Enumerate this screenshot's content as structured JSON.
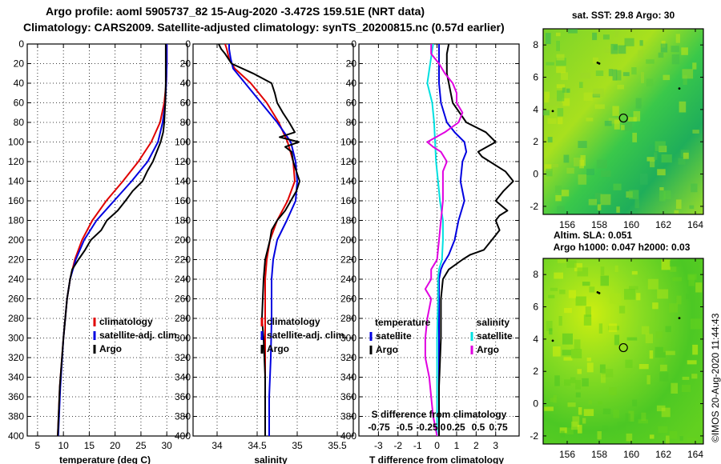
{
  "header": {
    "line1": "Argo profile: aoml 5905737_82 15-Aug-2020 -3.472S 159.51E (NRT data)",
    "line2": "Climatology: CARS2009. Satellite-adjusted climatology: synTS_20200815.nc (0.57d earlier)"
  },
  "colors": {
    "climatology": "#e00000",
    "satellite": "#0000e0",
    "argo": "#000000",
    "sat_salinity": "#00e0e0",
    "sat_diff_salinity": "#e000e0"
  },
  "chart_data": [
    {
      "type": "line",
      "title": "",
      "xlabel": "temperature (deg C)",
      "ylabel": "",
      "xlim": [
        3,
        34
      ],
      "ylim": [
        400,
        0
      ],
      "xticks": [
        5,
        10,
        15,
        20,
        25,
        30
      ],
      "yticks": [
        0,
        20,
        40,
        60,
        80,
        100,
        120,
        140,
        160,
        180,
        200,
        220,
        240,
        260,
        280,
        300,
        320,
        340,
        360,
        380,
        400
      ],
      "legend": [
        "climatology",
        "satellite-adj. clim.",
        "Argo"
      ],
      "series": [
        {
          "name": "climatology",
          "color": "#e00000",
          "depth": [
            0,
            20,
            40,
            60,
            80,
            100,
            120,
            140,
            160,
            180,
            200,
            220,
            240,
            260,
            300,
            350,
            400
          ],
          "values": [
            30.0,
            30.0,
            29.9,
            29.5,
            28.7,
            27.0,
            24.5,
            21.5,
            18.3,
            15.6,
            13.6,
            12.2,
            11.3,
            10.7,
            10.0,
            9.3,
            8.9
          ]
        },
        {
          "name": "satellite-adj. clim.",
          "color": "#0000e0",
          "depth": [
            0,
            20,
            40,
            60,
            80,
            100,
            120,
            140,
            160,
            180,
            200,
            220,
            240,
            260,
            300,
            350,
            400
          ],
          "values": [
            30.0,
            30.0,
            29.9,
            29.7,
            29.2,
            28.3,
            26.3,
            23.2,
            19.8,
            16.4,
            14.0,
            12.4,
            11.3,
            10.7,
            10.0,
            9.4,
            9.0
          ]
        },
        {
          "name": "Argo",
          "color": "#000000",
          "depth": [
            0,
            20,
            40,
            60,
            80,
            90,
            100,
            120,
            130,
            140,
            150,
            160,
            170,
            180,
            190,
            200,
            210,
            220,
            230,
            240,
            260,
            300,
            350,
            400
          ],
          "values": [
            29.8,
            29.8,
            29.8,
            29.7,
            29.5,
            29.3,
            28.8,
            27.3,
            26.2,
            25.3,
            23.4,
            22.0,
            20.5,
            18.4,
            17.3,
            15.3,
            14.2,
            12.9,
            11.7,
            11.3,
            10.7,
            10.0,
            9.3,
            8.9
          ]
        }
      ]
    },
    {
      "type": "line",
      "title": "",
      "xlabel": "salinity",
      "ylabel": "",
      "xlim": [
        33.7,
        35.7
      ],
      "ylim": [
        400,
        0
      ],
      "xticks": [
        34,
        34.5,
        35,
        35.5
      ],
      "yticks": [
        0,
        20,
        40,
        60,
        80,
        100,
        120,
        140,
        160,
        180,
        200,
        220,
        240,
        260,
        280,
        300,
        320,
        340,
        360,
        380,
        400
      ],
      "legend": [
        "climatology",
        "satellite-adj. clim.",
        "Argo"
      ],
      "series": [
        {
          "name": "climatology",
          "color": "#e00000",
          "depth": [
            0,
            5,
            15,
            25,
            40,
            60,
            80,
            100,
            120,
            140,
            160,
            180,
            200,
            220,
            240,
            280,
            320,
            360,
            400
          ],
          "values": [
            34.1,
            34.12,
            34.15,
            34.22,
            34.42,
            34.62,
            34.77,
            34.88,
            34.95,
            34.97,
            34.88,
            34.75,
            34.66,
            34.62,
            34.6,
            34.6,
            34.6,
            34.6,
            34.6
          ]
        },
        {
          "name": "satellite-adj. clim.",
          "color": "#0000e0",
          "depth": [
            0,
            5,
            15,
            25,
            40,
            60,
            80,
            100,
            120,
            140,
            160,
            180,
            200,
            220,
            240,
            280,
            320,
            360,
            400
          ],
          "values": [
            34.15,
            34.15,
            34.17,
            34.2,
            34.35,
            34.55,
            34.75,
            34.92,
            34.98,
            35.0,
            34.98,
            34.87,
            34.75,
            34.7,
            34.68,
            34.68,
            34.67,
            34.65,
            34.65
          ]
        },
        {
          "name": "Argo",
          "color": "#000000",
          "depth": [
            0,
            5,
            10,
            20,
            30,
            40,
            50,
            60,
            70,
            80,
            90,
            95,
            100,
            105,
            110,
            120,
            130,
            140,
            150,
            160,
            170,
            180,
            190,
            200,
            210,
            220,
            240,
            260,
            280,
            300,
            320,
            340,
            360,
            380,
            400
          ],
          "values": [
            34.02,
            34.05,
            34.1,
            34.18,
            34.45,
            34.68,
            34.72,
            34.75,
            34.82,
            34.9,
            34.97,
            34.78,
            35.02,
            34.85,
            34.93,
            34.95,
            34.99,
            35.03,
            34.99,
            34.92,
            34.85,
            34.75,
            34.68,
            34.66,
            34.63,
            34.6,
            34.58,
            34.57,
            34.56,
            34.58,
            34.59,
            34.6,
            34.6,
            34.6,
            34.6
          ]
        }
      ]
    },
    {
      "type": "line",
      "title": "",
      "xlabel": "T difference from climatology",
      "ylabel": "",
      "xlim": [
        -4,
        4.2
      ],
      "ylim": [
        400,
        0
      ],
      "xticks": [
        -3,
        -2,
        -1,
        0,
        1,
        2,
        3
      ],
      "secondary_xlabel": "S difference from climatology",
      "secondary_xticks": [
        "-0.75",
        "-0.5",
        "-0.25",
        "0",
        "0.25",
        "0.5",
        "0.75"
      ],
      "yticks": [
        0,
        20,
        40,
        60,
        80,
        100,
        120,
        140,
        160,
        180,
        200,
        220,
        240,
        260,
        280,
        300,
        320,
        340,
        360,
        380,
        400
      ],
      "legend_left_title": "temperature",
      "legend_right_title": "salinity",
      "legend": [
        "satellite",
        "Argo",
        "satellite",
        "Argo"
      ],
      "series": [
        {
          "name": "temperature satellite",
          "color": "#0000e0",
          "depth": [
            0,
            40,
            60,
            80,
            90,
            100,
            110,
            120,
            140,
            160,
            180,
            200,
            215,
            225,
            230,
            240,
            260,
            300,
            350,
            400
          ],
          "values": [
            0.1,
            0.1,
            0.2,
            0.5,
            0.9,
            1.4,
            1.5,
            1.3,
            1.2,
            1.4,
            1.1,
            0.9,
            0.6,
            0.3,
            0.2,
            0.1,
            0.1,
            0.1,
            0.1,
            0.1
          ]
        },
        {
          "name": "temperature Argo",
          "color": "#000000",
          "depth": [
            0,
            10,
            30,
            60,
            80,
            90,
            100,
            110,
            115,
            120,
            130,
            140,
            150,
            160,
            170,
            175,
            180,
            190,
            200,
            210,
            215,
            220,
            230,
            240,
            260,
            300,
            350,
            400
          ],
          "values": [
            0.6,
            0.5,
            0.5,
            0.8,
            1.5,
            2.5,
            3.0,
            2.1,
            2.3,
            2.7,
            3.5,
            3.9,
            3.4,
            3.0,
            3.6,
            3.2,
            3.0,
            3.2,
            2.8,
            2.4,
            1.7,
            1.3,
            0.6,
            0.3,
            0.2,
            0.2,
            0.1,
            0.1
          ]
        },
        {
          "name": "salinity satellite",
          "color": "#00e0e0",
          "depth": [
            0,
            20,
            40,
            60,
            80,
            100,
            120,
            140,
            160,
            180,
            200,
            220,
            230,
            240,
            260,
            300,
            350,
            400
          ],
          "values": [
            -0.2,
            -0.35,
            -0.5,
            -0.25,
            -0.15,
            -0.1,
            -0.05,
            0.05,
            0.15,
            0.3,
            0.3,
            0.25,
            0.1,
            0.05,
            0.05,
            0.0,
            0.0,
            0.0
          ]
        },
        {
          "name": "salinity Argo",
          "color": "#e000e0",
          "depth": [
            0,
            10,
            20,
            30,
            40,
            50,
            60,
            70,
            80,
            90,
            100,
            105,
            110,
            120,
            130,
            140,
            160,
            180,
            200,
            220,
            230,
            240,
            250,
            260,
            280,
            300,
            320,
            340,
            360,
            380,
            400
          ],
          "values": [
            -0.3,
            -0.3,
            0.1,
            0.4,
            0.8,
            1.0,
            1.0,
            1.3,
            1.1,
            0.4,
            -0.5,
            -0.2,
            0.2,
            0.5,
            0.3,
            0.3,
            0.3,
            0.2,
            0.1,
            0.0,
            -0.3,
            -0.3,
            -0.6,
            -0.3,
            -0.5,
            -0.6,
            -0.6,
            -0.4,
            -0.3,
            -0.2,
            0.0
          ]
        }
      ]
    },
    {
      "type": "heatmap",
      "title": "sat. SST: 29.8 Argo: 30",
      "xlabel": "",
      "ylabel": "",
      "xlim": [
        154.5,
        164.5
      ],
      "ylim": [
        -2.5,
        9
      ],
      "xticks": [
        156,
        158,
        160,
        162,
        164
      ],
      "yticks": [
        -2,
        0,
        2,
        4,
        6,
        8
      ],
      "marker": {
        "lon": 159.51,
        "lat": 3.47
      }
    },
    {
      "type": "heatmap",
      "title": "Altim. SLA: 0.051",
      "subtitle": "Argo h1000: 0.047 h2000: 0.03",
      "xlabel": "",
      "ylabel": "",
      "xlim": [
        154.5,
        164.5
      ],
      "ylim": [
        -2.5,
        9
      ],
      "xticks": [
        156,
        158,
        160,
        162,
        164
      ],
      "yticks": [
        -2,
        0,
        2,
        4,
        6,
        8
      ],
      "marker": {
        "lon": 159.51,
        "lat": 3.47
      }
    }
  ],
  "footer": {
    "credit": "©IMOS 20-Aug-2020 11:44:43"
  }
}
